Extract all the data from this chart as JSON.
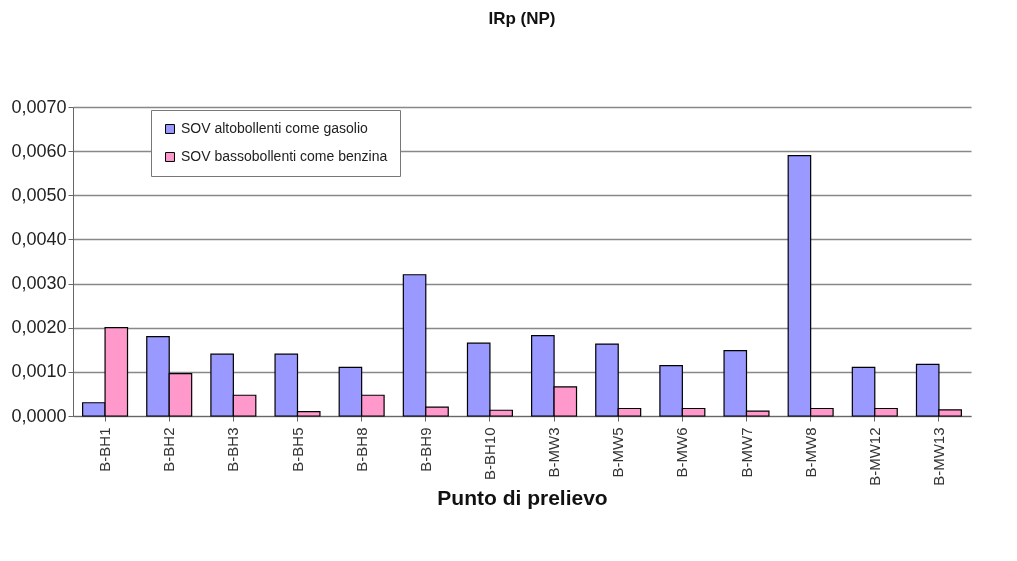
{
  "chart_data": {
    "type": "bar",
    "title": "IRp (NP)",
    "xlabel": "Punto di prelievo",
    "categories": [
      "B-BH1",
      "B-BH2",
      "B-BH3",
      "B-BH5",
      "B-BH8",
      "B-BH9",
      "B-BH10",
      "B-MW3",
      "B-MW5",
      "B-MW6",
      "B-MW7",
      "B-MW8",
      "B-MW12",
      "B-MW13"
    ],
    "series": [
      {
        "name": "SOV altobollenti come gasolio",
        "color": "#9999ff",
        "values": [
          0.0003,
          0.0018,
          0.0014,
          0.0014,
          0.0011,
          0.0032,
          0.00165,
          0.00182,
          0.00163,
          0.00114,
          0.00148,
          0.0059,
          0.0011,
          0.00117
        ]
      },
      {
        "name": "SOV bassobollenti come benzina",
        "color": "#ff99cc",
        "values": [
          0.002,
          0.00096,
          0.00047,
          0.0001,
          0.00047,
          0.0002,
          0.00013,
          0.00066,
          0.00017,
          0.00017,
          0.00011,
          0.00017,
          0.00017,
          0.00014
        ]
      }
    ],
    "ylim": [
      0,
      0.007
    ],
    "yticks": [
      {
        "value": 0,
        "label": "0,0000"
      },
      {
        "value": 0.001,
        "label": "0,0010"
      },
      {
        "value": 0.002,
        "label": "0,0020"
      },
      {
        "value": 0.003,
        "label": "0,0030"
      },
      {
        "value": 0.004,
        "label": "0,0040"
      },
      {
        "value": 0.005,
        "label": "0,0050"
      },
      {
        "value": 0.006,
        "label": "0,0060"
      },
      {
        "value": 0.007,
        "label": "0,0070"
      }
    ],
    "grid": "y",
    "legend": "top left"
  }
}
